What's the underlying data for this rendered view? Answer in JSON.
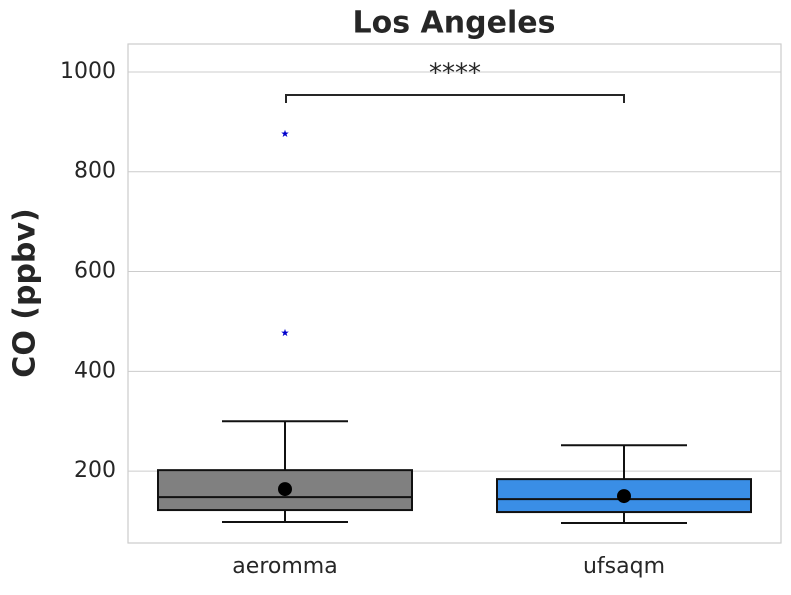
{
  "chart_data": {
    "type": "box",
    "title": "Los Angeles",
    "y_label": "CO (ppbv)",
    "categories": [
      "aeromma",
      "ufsaqm"
    ],
    "colors": [
      "#808080",
      "#3a8ee6"
    ],
    "boxes": [
      {
        "whislo": 98,
        "q1": 122,
        "med": 148,
        "q3": 202,
        "whishi": 300,
        "mean": 164,
        "fliers": [
          477,
          876
        ]
      },
      {
        "whislo": 96,
        "q1": 118,
        "med": 144,
        "q3": 184,
        "whishi": 252,
        "mean": 150,
        "fliers": []
      }
    ],
    "flier_color": "#0000cc",
    "annotation": "****",
    "ylim": [
      56,
      1056
    ],
    "yticks": [
      200,
      400,
      600,
      800,
      1000
    ],
    "grid": true
  }
}
